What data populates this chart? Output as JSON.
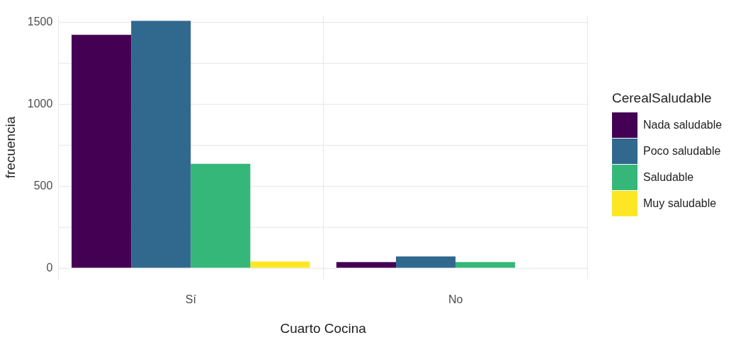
{
  "chart_data": {
    "type": "bar",
    "xlabel": "Cuarto Cocina",
    "ylabel": "frecuencia",
    "legend_title": "CerealSaludable",
    "categories": [
      "Sí",
      "No"
    ],
    "series": [
      {
        "name": "Nada saludable",
        "color": "#440154",
        "values": [
          1423,
          37
        ]
      },
      {
        "name": "Poco saludable",
        "color": "#31688e",
        "values": [
          1508,
          71
        ]
      },
      {
        "name": "Saludable",
        "color": "#35b779",
        "values": [
          636,
          37
        ]
      },
      {
        "name": "Muy saludable",
        "color": "#fde725",
        "values": [
          40,
          null
        ]
      }
    ],
    "ylim": [
      -68,
      1540
    ],
    "yticks": [
      0,
      {
        "value": 250,
        "label": null
      },
      500,
      {
        "value": 750,
        "label": null
      },
      1000,
      {
        "value": 1250,
        "label": null
      },
      1500
    ],
    "grid": true,
    "legend": "right"
  }
}
